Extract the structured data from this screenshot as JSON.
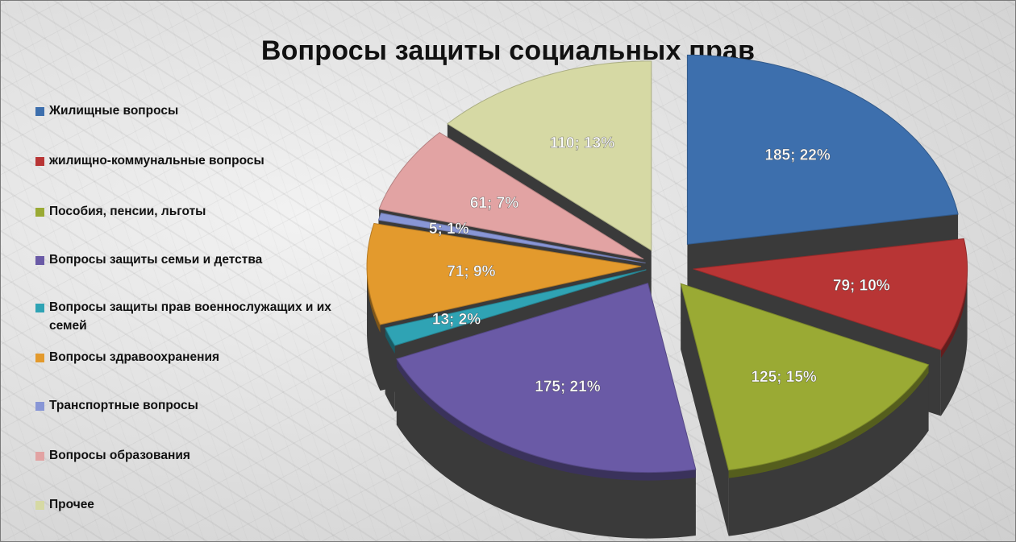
{
  "chart_data": {
    "type": "pie",
    "title": "Вопросы защиты социальных прав",
    "slices": [
      {
        "name": "Жилищные вопросы",
        "value": 185,
        "percent": 22,
        "label": "185; 22%",
        "color": "#3d6fad"
      },
      {
        "name": "жилищно-коммунальные вопросы",
        "value": 79,
        "percent": 10,
        "label": "79; 10%",
        "color": "#b83535"
      },
      {
        "name": "Пособия, пенсии, льготы",
        "value": 125,
        "percent": 15,
        "label": "125; 15%",
        "color": "#9aaa34"
      },
      {
        "name": "Вопросы защиты семьи и детства",
        "value": 175,
        "percent": 21,
        "label": "175; 21%",
        "color": "#6a5aa6"
      },
      {
        "name": "Вопросы защиты прав военнослужащих и их семей",
        "value": 13,
        "percent": 2,
        "label": "13; 2%",
        "color": "#2fa3b4"
      },
      {
        "name": "Вопросы здравоохранения",
        "value": 71,
        "percent": 9,
        "label": "71; 9%",
        "color": "#e39a2d"
      },
      {
        "name": "Транспортные вопросы",
        "value": 5,
        "percent": 1,
        "label": "5; 1%",
        "color": "#8896d6"
      },
      {
        "name": "Вопросы образования",
        "value": 61,
        "percent": 7,
        "label": "61; 7%",
        "color": "#e2a3a3"
      },
      {
        "name": "Прочее",
        "value": 110,
        "percent": 13,
        "label": "110; 13%",
        "color": "#d6d9a4"
      }
    ],
    "legend_position": "left"
  }
}
